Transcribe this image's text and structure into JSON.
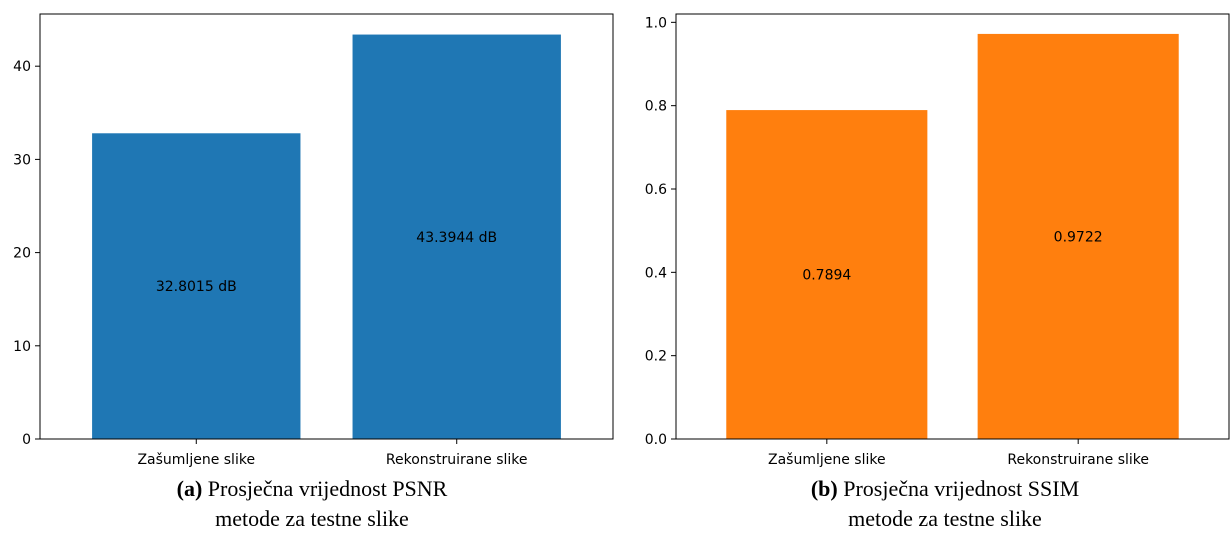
{
  "chart_data": [
    {
      "type": "bar",
      "categories": [
        "Zašumljene slike",
        "Rekonstruirane slike"
      ],
      "values": [
        32.8015,
        43.3944
      ],
      "data_labels": [
        "32.8015 dB",
        "43.3944 dB"
      ],
      "ylim": [
        0,
        45.6
      ],
      "yticks": [
        0,
        10,
        20,
        30,
        40
      ],
      "ytick_labels": [
        "0",
        "10",
        "20",
        "30",
        "40"
      ],
      "color": "#1f77b4",
      "grid": false,
      "caption": {
        "tag": "(a)",
        "line1": "Prosječna vrijednost PSNR",
        "line2": "metode za testne slike"
      }
    },
    {
      "type": "bar",
      "categories": [
        "Zašumljene slike",
        "Rekonstruirane slike"
      ],
      "values": [
        0.7894,
        0.9722
      ],
      "data_labels": [
        "0.7894",
        "0.9722"
      ],
      "ylim": [
        0,
        1.02
      ],
      "yticks": [
        0,
        0.2,
        0.4,
        0.6,
        0.8,
        1.0
      ],
      "ytick_labels": [
        "0.0",
        "0.2",
        "0.4",
        "0.6",
        "0.8",
        "1.0"
      ],
      "color": "#ff7f0e",
      "grid": false,
      "caption": {
        "tag": "(b)",
        "line1": "Prosječna vrijednost SSIM",
        "line2": "metode za testne slike"
      }
    }
  ]
}
